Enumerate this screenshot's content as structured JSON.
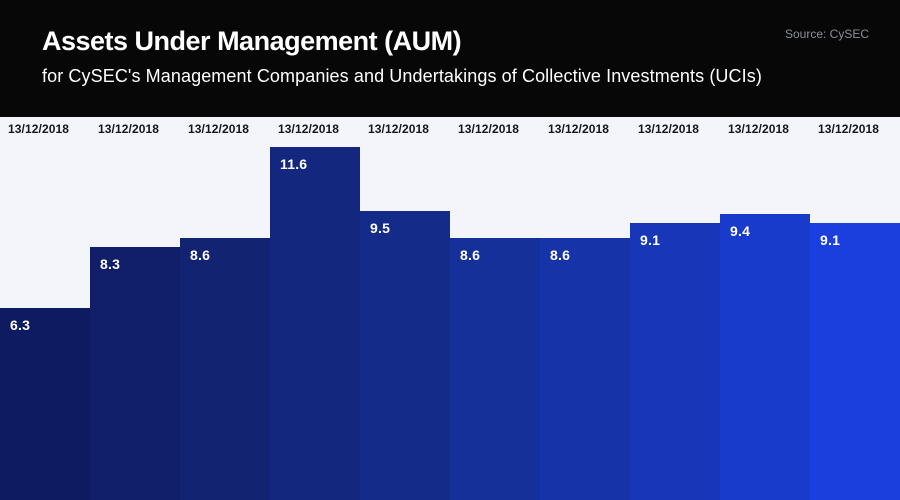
{
  "header": {
    "title": "Assets Under Management (AUM)",
    "subtitle": "for CySEC's Management Companies and Undertakings of Collective Investments (UCIs)",
    "source": "Source: CySEC"
  },
  "colors": {
    "header_bg": "#070707",
    "chart_bg": "#f4f5fa",
    "date_text": "#15151e",
    "value_text": "#ffffff",
    "source_text": "#8b8e94"
  },
  "chart_data": {
    "type": "bar",
    "title": "Assets Under Management (AUM)",
    "subtitle": "for CySEC's Management Companies and Undertakings of Collective Investments (UCIs)",
    "source": "Source: CySEC",
    "categories": [
      "13/12/2018",
      "13/12/2018",
      "13/12/2018",
      "13/12/2018",
      "13/12/2018",
      "13/12/2018",
      "13/12/2018",
      "13/12/2018",
      "13/12/2018",
      "13/12/2018"
    ],
    "values": [
      6.3,
      8.3,
      8.6,
      11.6,
      9.5,
      8.6,
      8.6,
      9.1,
      9.4,
      9.1
    ],
    "bar_colors": [
      "#0f1b60",
      "#111f6a",
      "#122372",
      "#13277e",
      "#142b8a",
      "#153098",
      "#1634a8",
      "#1737b8",
      "#183bcc",
      "#1a3fdd"
    ],
    "xlabel": "",
    "ylabel": "",
    "ylim": [
      0,
      11.8
    ],
    "grid": false,
    "legend": false,
    "value_label_position": "inside-top-left",
    "category_label_position": "above-columns"
  }
}
